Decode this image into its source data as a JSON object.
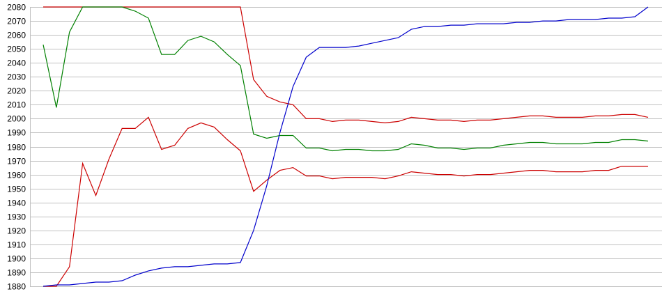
{
  "chart_data": {
    "type": "line",
    "title": "",
    "xlabel": "",
    "ylabel": "",
    "ylim": [
      1880,
      2080
    ],
    "yticks": [
      1880,
      1890,
      1900,
      1910,
      1920,
      1930,
      1940,
      1950,
      1960,
      1970,
      1980,
      1990,
      2000,
      2010,
      2020,
      2030,
      2040,
      2050,
      2060,
      2070,
      2080
    ],
    "grid": true,
    "legend": "none",
    "x": [
      0,
      1,
      2,
      3,
      4,
      5,
      6,
      7,
      8,
      9,
      10,
      11,
      12,
      13,
      14,
      15,
      16,
      17,
      18,
      19,
      20,
      21,
      22,
      23,
      24,
      25,
      26,
      27,
      28,
      29,
      30,
      31,
      32,
      33,
      34,
      35,
      36,
      37,
      38,
      39,
      40,
      41,
      42,
      43,
      44,
      45,
      46
    ],
    "series": [
      {
        "name": "upper-red",
        "color": "#cc0000",
        "values": [
          2080,
          2080,
          2080,
          2080,
          2080,
          2080,
          2080,
          2080,
          2080,
          2080,
          2080,
          2080,
          2080,
          2080,
          2080,
          2080,
          2028,
          2016,
          2012,
          2010,
          2000,
          2000,
          1998,
          1999,
          1999,
          1998,
          1997,
          1998,
          2001,
          2000,
          1999,
          1999,
          1998,
          1999,
          1999,
          2000,
          2001,
          2002,
          2002,
          2001,
          2001,
          2001,
          2002,
          2002,
          2003,
          2003,
          2001
        ]
      },
      {
        "name": "green",
        "color": "#008000",
        "values": [
          2053,
          2008,
          2062,
          2080,
          2080,
          2080,
          2080,
          2077,
          2072,
          2046,
          2046,
          2056,
          2059,
          2055,
          2046,
          2038,
          1989,
          1986,
          1988,
          1988,
          1979,
          1979,
          1977,
          1978,
          1978,
          1977,
          1977,
          1978,
          1982,
          1981,
          1979,
          1979,
          1978,
          1979,
          1979,
          1981,
          1982,
          1983,
          1983,
          1982,
          1982,
          1982,
          1983,
          1983,
          1985,
          1985,
          1984
        ]
      },
      {
        "name": "lower-red",
        "color": "#cc0000",
        "values": [
          1880,
          1880,
          1894,
          1968,
          1945,
          1971,
          1993,
          1993,
          2001,
          1978,
          1981,
          1993,
          1997,
          1994,
          1985,
          1977,
          1948,
          1956,
          1963,
          1965,
          1959,
          1959,
          1957,
          1958,
          1958,
          1958,
          1957,
          1959,
          1962,
          1961,
          1960,
          1960,
          1959,
          1960,
          1960,
          1961,
          1962,
          1963,
          1963,
          1962,
          1962,
          1962,
          1963,
          1963,
          1966,
          1966,
          1966
        ]
      },
      {
        "name": "blue",
        "color": "#0000cc",
        "values": [
          1880,
          1881,
          1881,
          1882,
          1883,
          1883,
          1884,
          1888,
          1891,
          1893,
          1894,
          1894,
          1895,
          1896,
          1896,
          1897,
          1920,
          1952,
          1990,
          2023,
          2044,
          2051,
          2051,
          2051,
          2052,
          2054,
          2056,
          2058,
          2064,
          2066,
          2066,
          2067,
          2067,
          2068,
          2068,
          2068,
          2069,
          2069,
          2070,
          2070,
          2071,
          2071,
          2071,
          2072,
          2072,
          2073,
          2080
        ]
      }
    ]
  }
}
